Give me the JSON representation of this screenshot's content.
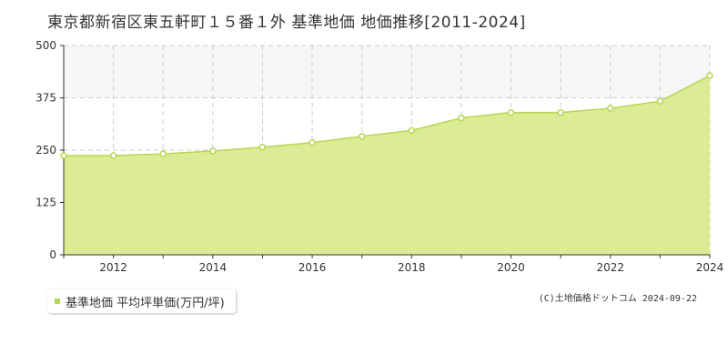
{
  "title": "東京都新宿区東五軒町１５番１外 基準地価 地価推移[2011-2024]",
  "legend": {
    "label": "基準地価 平均坪単価(万円/坪)"
  },
  "copyright": "(C)土地価格ドットコム 2024-09-22",
  "colors": {
    "fill": "#dcec94",
    "line": "#b7d654",
    "marker_fill": "#ffffff",
    "marker_stroke": "#b7d654",
    "grid": "#cccccc",
    "band": "#f7f5f7",
    "axis": "#333333"
  },
  "chart_data": {
    "type": "area",
    "title": "東京都新宿区東五軒町１５番１外 基準地価 地価推移[2011-2024]",
    "xlabel": "",
    "ylabel": "",
    "x": [
      2011,
      2012,
      2013,
      2014,
      2015,
      2016,
      2017,
      2018,
      2019,
      2020,
      2021,
      2022,
      2023,
      2024
    ],
    "series": [
      {
        "name": "基準地価 平均坪単価(万円/坪)",
        "values": [
          237,
          237,
          241,
          248,
          257,
          268,
          283,
          297,
          327,
          340,
          340,
          350,
          367,
          428
        ]
      }
    ],
    "xlim": [
      2011,
      2024
    ],
    "ylim": [
      0,
      500
    ],
    "yticks": [
      0,
      125,
      250,
      375,
      500
    ],
    "xticks": [
      2012,
      2014,
      2016,
      2018,
      2020,
      2022,
      2024
    ],
    "grid": true,
    "legend_position": "bottom-left"
  }
}
